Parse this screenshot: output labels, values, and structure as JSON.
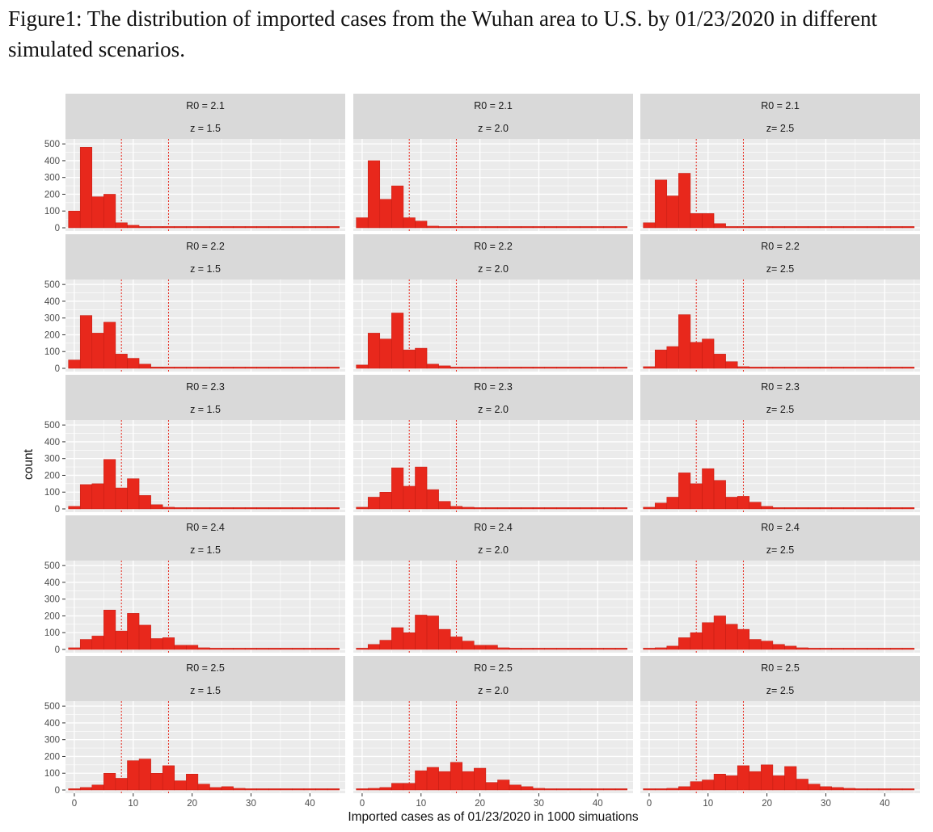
{
  "caption": "Figure1: The distribution of imported cases from the Wuhan area to U.S. by 01/23/2020 in different simulated scenarios.",
  "chart_data": {
    "type": "histogram",
    "xlabel": "Imported cases as of 01/23/2020 in 1000 simuations",
    "ylabel": "count",
    "xlim": [
      -1.5,
      46
    ],
    "ylim": [
      0,
      520
    ],
    "xticks": [
      0,
      10,
      20,
      30,
      40
    ],
    "yticks": [
      0,
      100,
      200,
      300,
      400,
      500
    ],
    "bin_width": 2,
    "bin_starts": [
      -1,
      1,
      3,
      5,
      7,
      9,
      11,
      13,
      15,
      17,
      19,
      21,
      23,
      25,
      27,
      29,
      31,
      33,
      35,
      37,
      39,
      41,
      43
    ],
    "reference_lines": [
      8,
      16
    ],
    "colors": {
      "bar": "#e8281c",
      "panel_bg": "#ebebeb",
      "strip_bg": "#d9d9d9",
      "grid": "#ffffff",
      "ref_line": "#e8281c"
    },
    "panels": [
      {
        "r0_label": "R0 = 2.1",
        "z_label": "z = 1.5",
        "values": [
          100,
          480,
          185,
          200,
          30,
          15,
          5,
          2,
          1,
          1,
          0,
          0,
          0,
          0,
          0,
          0,
          0,
          0,
          0,
          0,
          0,
          0,
          0
        ]
      },
      {
        "r0_label": "R0 = 2.1",
        "z_label": "z = 2.0",
        "values": [
          60,
          400,
          170,
          250,
          60,
          40,
          10,
          5,
          2,
          1,
          0,
          0,
          0,
          0,
          0,
          0,
          0,
          0,
          0,
          0,
          0,
          0,
          0
        ]
      },
      {
        "r0_label": "R0 = 2.1",
        "z_label": "z= 2.5",
        "values": [
          30,
          285,
          190,
          325,
          85,
          85,
          25,
          5,
          3,
          1,
          0,
          0,
          0,
          0,
          0,
          0,
          0,
          0,
          0,
          0,
          0,
          0,
          0
        ]
      },
      {
        "r0_label": "R0 = 2.2",
        "z_label": "z = 1.5",
        "values": [
          50,
          315,
          210,
          275,
          85,
          60,
          25,
          8,
          5,
          2,
          1,
          0,
          0,
          0,
          0,
          0,
          0,
          0,
          0,
          0,
          0,
          0,
          0
        ]
      },
      {
        "r0_label": "R0 = 2.2",
        "z_label": "z = 2.0",
        "values": [
          20,
          210,
          175,
          330,
          110,
          120,
          25,
          15,
          5,
          2,
          1,
          0,
          0,
          0,
          0,
          0,
          0,
          0,
          0,
          0,
          0,
          0,
          0
        ]
      },
      {
        "r0_label": "R0 = 2.2",
        "z_label": "z= 2.5",
        "values": [
          10,
          110,
          130,
          320,
          155,
          175,
          85,
          40,
          10,
          5,
          2,
          1,
          0,
          0,
          0,
          0,
          0,
          0,
          0,
          0,
          0,
          0,
          0
        ]
      },
      {
        "r0_label": "R0 = 2.3",
        "z_label": "z = 1.5",
        "values": [
          15,
          145,
          150,
          295,
          125,
          180,
          80,
          25,
          10,
          5,
          2,
          1,
          0,
          0,
          0,
          0,
          0,
          0,
          0,
          0,
          0,
          0,
          0
        ]
      },
      {
        "r0_label": "R0 = 2.3",
        "z_label": "z = 2.0",
        "values": [
          10,
          70,
          100,
          245,
          135,
          250,
          115,
          45,
          15,
          10,
          3,
          1,
          0,
          0,
          0,
          0,
          0,
          0,
          0,
          0,
          0,
          0,
          0
        ]
      },
      {
        "r0_label": "R0 = 2.3",
        "z_label": "z= 2.5",
        "values": [
          10,
          35,
          70,
          215,
          150,
          240,
          170,
          70,
          75,
          40,
          15,
          5,
          2,
          1,
          0,
          0,
          0,
          0,
          0,
          0,
          0,
          0,
          0
        ]
      },
      {
        "r0_label": "R0 = 2.4",
        "z_label": "z = 1.5",
        "values": [
          10,
          60,
          80,
          235,
          110,
          215,
          145,
          65,
          70,
          25,
          25,
          10,
          5,
          2,
          1,
          0,
          0,
          0,
          0,
          0,
          0,
          0,
          0
        ]
      },
      {
        "r0_label": "R0 = 2.4",
        "z_label": "z = 2.0",
        "values": [
          5,
          30,
          55,
          130,
          100,
          205,
          200,
          120,
          75,
          50,
          25,
          25,
          10,
          5,
          2,
          1,
          0,
          0,
          0,
          0,
          0,
          0,
          0
        ]
      },
      {
        "r0_label": "R0 = 2.4",
        "z_label": "z= 2.5",
        "values": [
          5,
          10,
          20,
          70,
          100,
          160,
          200,
          150,
          120,
          60,
          50,
          30,
          20,
          10,
          5,
          2,
          1,
          0,
          0,
          0,
          0,
          0,
          0
        ]
      },
      {
        "r0_label": "R0 = 2.5",
        "z_label": "z = 1.5",
        "values": [
          5,
          15,
          30,
          100,
          70,
          175,
          185,
          100,
          145,
          55,
          95,
          35,
          15,
          20,
          10,
          5,
          5,
          2,
          1,
          1,
          0,
          0,
          0
        ]
      },
      {
        "r0_label": "R0 = 2.5",
        "z_label": "z = 2.0",
        "values": [
          5,
          10,
          15,
          40,
          40,
          115,
          135,
          110,
          165,
          110,
          130,
          45,
          60,
          30,
          20,
          10,
          5,
          5,
          2,
          1,
          1,
          0,
          0
        ]
      },
      {
        "r0_label": "R0 = 2.5",
        "z_label": "z= 2.5",
        "values": [
          2,
          5,
          10,
          20,
          50,
          60,
          95,
          85,
          145,
          110,
          150,
          85,
          140,
          65,
          35,
          20,
          15,
          10,
          5,
          3,
          2,
          1,
          1
        ]
      }
    ]
  }
}
